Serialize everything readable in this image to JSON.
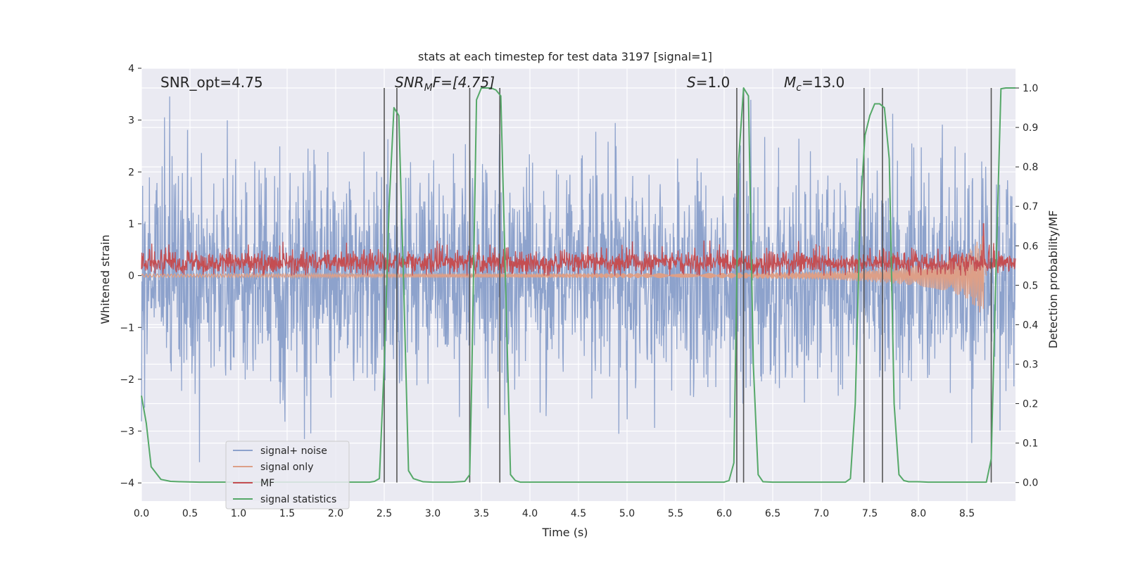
{
  "chart_data": {
    "type": "line",
    "title": "stats at each timestep for test data 3197 [signal=1]",
    "xlabel": "Time (s)",
    "ylabel": "Whitened strain",
    "y2label": "Detection probability/MF",
    "xlim": [
      0.0,
      9.0
    ],
    "ylim": [
      -4.35,
      4.0
    ],
    "y2lim": [
      -0.047,
      1.05
    ],
    "grid": true,
    "x_ticks": [
      "0.0",
      "0.5",
      "1.0",
      "1.5",
      "2.0",
      "2.5",
      "3.0",
      "3.5",
      "4.0",
      "4.5",
      "5.0",
      "5.5",
      "6.0",
      "6.5",
      "7.0",
      "7.5",
      "8.0",
      "8.5"
    ],
    "y_ticks": [
      "4",
      "3",
      "2",
      "1",
      "0",
      "−1",
      "−2",
      "−3",
      "−4"
    ],
    "y2_ticks": [
      "1.0",
      "0.9",
      "0.8",
      "0.7",
      "0.6",
      "0.5",
      "0.4",
      "0.3",
      "0.2",
      "0.1",
      "0.0"
    ],
    "legend": {
      "position": "lower-left",
      "entries": [
        "signal+ noise",
        "signal only",
        "MF",
        "signal statistics"
      ]
    },
    "annotations": {
      "snr_opt": "SNR_opt=4.75",
      "snr_mf_base": "SNR",
      "snr_mf_sub": "M",
      "snr_mf_rest": "F=[4.75]",
      "s_label": "S",
      "s_value": "=1.0",
      "mc_base": "M",
      "mc_sub": "c",
      "mc_value": "=13.0"
    },
    "colors": {
      "noise": "#8da2cc",
      "signal_only": "#dd9f87",
      "mf": "#c44e52",
      "stat": "#55a868",
      "vlines": "#555555",
      "background": "#eaeaf2"
    },
    "series": [
      {
        "name": "signal+ noise",
        "description": "whitened noisy strain, amplitude roughly within ±2.5 with peaks to ±3.6",
        "envelope": [
          -3.6,
          3.6
        ]
      },
      {
        "name": "signal only",
        "description": "chirp signal growing in amplitude towards merger",
        "x": [
          0.0,
          6.0,
          7.0,
          7.5,
          8.0,
          8.3,
          8.5,
          8.65,
          8.68
        ],
        "amplitude": [
          0.03,
          0.05,
          0.08,
          0.12,
          0.2,
          0.3,
          0.45,
          0.75,
          0.8
        ]
      },
      {
        "name": "MF",
        "description": "matched-filter output fluctuating around 0.25",
        "center": 0.25,
        "spread": 0.2,
        "spike_x": 8.67,
        "spike_y": 1.0
      },
      {
        "name": "signal statistics",
        "axis": "right",
        "x": [
          0.0,
          0.05,
          0.1,
          0.2,
          0.3,
          0.4,
          0.6,
          1.0,
          2.0,
          2.35,
          2.4,
          2.45,
          2.5,
          2.55,
          2.6,
          2.65,
          2.7,
          2.75,
          2.8,
          2.9,
          3.0,
          3.2,
          3.33,
          3.38,
          3.4,
          3.45,
          3.5,
          3.55,
          3.6,
          3.65,
          3.7,
          3.75,
          3.8,
          3.85,
          3.9,
          4.0,
          5.0,
          6.0,
          6.05,
          6.1,
          6.15,
          6.2,
          6.25,
          6.3,
          6.35,
          6.4,
          6.5,
          7.0,
          7.25,
          7.3,
          7.35,
          7.4,
          7.45,
          7.5,
          7.55,
          7.6,
          7.65,
          7.7,
          7.75,
          7.8,
          7.85,
          7.9,
          8.0,
          8.1,
          8.2,
          8.5,
          8.7,
          8.75,
          8.8,
          8.85,
          8.9,
          8.95,
          9.0
        ],
        "values": [
          0.22,
          0.15,
          0.04,
          0.008,
          0.003,
          0.002,
          0.001,
          0.001,
          0.001,
          0.001,
          0.003,
          0.01,
          0.3,
          0.7,
          0.95,
          0.93,
          0.5,
          0.03,
          0.01,
          0.002,
          0.001,
          0.001,
          0.003,
          0.02,
          0.25,
          0.97,
          1.0,
          1.0,
          1.0,
          0.995,
          0.98,
          0.5,
          0.02,
          0.005,
          0.001,
          0.001,
          0.001,
          0.001,
          0.005,
          0.05,
          0.82,
          1.0,
          0.98,
          0.3,
          0.02,
          0.002,
          0.001,
          0.001,
          0.001,
          0.01,
          0.2,
          0.68,
          0.88,
          0.93,
          0.96,
          0.96,
          0.95,
          0.82,
          0.2,
          0.02,
          0.005,
          0.002,
          0.002,
          0.001,
          0.001,
          0.001,
          0.001,
          0.06,
          0.55,
          0.998,
          1.0,
          1.0,
          1.0
        ]
      }
    ],
    "vertical_lines_x": [
      2.5,
      2.63,
      3.38,
      3.69,
      6.13,
      6.2,
      7.44,
      7.63,
      8.75
    ]
  }
}
